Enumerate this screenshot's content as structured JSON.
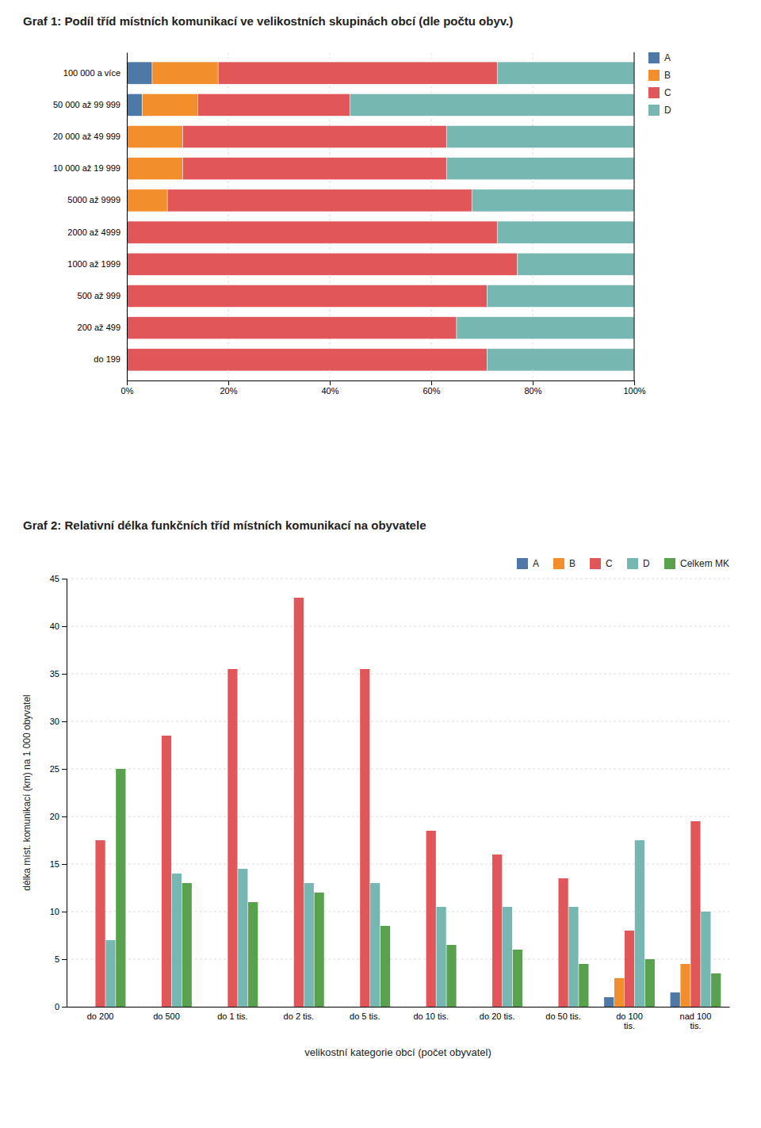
{
  "chart_data": [
    {
      "type": "bar",
      "orientation": "horizontal",
      "stacked": true,
      "title": "Graf 1: Podíl tříd místních komunikací ve velikostních skupinách obcí (dle počtu obyv.)",
      "categories": [
        "100 000 a více",
        "50 000 až 99 999",
        "20 000 až 49 999",
        "10 000 až 19 999",
        "5000 až 9999",
        "2000 až 4999",
        "1000 až 1999",
        "500 až 999",
        "200 až 499",
        "do 199"
      ],
      "series": [
        {
          "name": "A",
          "values": [
            0.05,
            0.03,
            0.0,
            0.0,
            0.0,
            0.0,
            0.0,
            0.0,
            0.0,
            0.0
          ]
        },
        {
          "name": "B",
          "values": [
            0.13,
            0.11,
            0.11,
            0.11,
            0.08,
            0.0,
            0.0,
            0.0,
            0.0,
            0.0
          ]
        },
        {
          "name": "C",
          "values": [
            0.55,
            0.3,
            0.52,
            0.52,
            0.6,
            0.73,
            0.77,
            0.71,
            0.65,
            0.71
          ]
        },
        {
          "name": "D",
          "values": [
            0.27,
            0.56,
            0.37,
            0.37,
            0.32,
            0.27,
            0.23,
            0.29,
            0.35,
            0.29
          ]
        }
      ],
      "xlim": [
        0,
        1.0
      ],
      "xticks": [
        {
          "value": 0,
          "label": "0%"
        },
        {
          "value": 0.2,
          "label": "20%"
        },
        {
          "value": 0.4,
          "label": "40%"
        },
        {
          "value": 0.6,
          "label": "60%"
        },
        {
          "value": 0.8,
          "label": "80%"
        },
        {
          "value": 1.0,
          "label": "100%"
        }
      ],
      "grid": true,
      "legend": "right"
    },
    {
      "type": "bar",
      "title": "Graf 2: Relativní délka funkčních tříd místních komunikací na obyvatele",
      "categories": [
        "do 200",
        "do 500",
        "do 1 tis.",
        "do 2 tis.",
        "do 5 tis.",
        "do 10 tis.",
        "do 20 tis.",
        "do 50 tis.",
        "do 100\ntis.",
        "nad 100\ntis."
      ],
      "xlabel": "velikostní kategorie obcí (počet obyvatel)",
      "ylabel": "délka míst. komunikací (km) na 1 000 obyvatel",
      "series": [
        {
          "name": "A",
          "values": [
            0.0,
            0.0,
            0.0,
            0.0,
            0.0,
            0.0,
            0.0,
            0.0,
            1.0,
            1.5
          ]
        },
        {
          "name": "B",
          "values": [
            0.0,
            0.0,
            0.0,
            0.0,
            0.0,
            0.0,
            0.0,
            0.0,
            3.0,
            4.5
          ]
        },
        {
          "name": "C",
          "values": [
            17.5,
            28.5,
            35.5,
            43.0,
            35.5,
            18.5,
            16.0,
            13.5,
            8.0,
            19.5
          ]
        },
        {
          "name": "D",
          "values": [
            7.0,
            14.0,
            14.5,
            13.0,
            13.0,
            10.5,
            10.5,
            10.5,
            17.5,
            10.0
          ]
        },
        {
          "name": "Celkem MK",
          "values": [
            25.0,
            13.0,
            11.0,
            12.0,
            8.5,
            6.5,
            6.0,
            4.5,
            5.0,
            3.5
          ]
        }
      ],
      "ylim": [
        0,
        45
      ],
      "yticks": [
        0,
        5,
        10,
        15,
        20,
        25,
        30,
        35,
        40,
        45
      ],
      "grid": true,
      "legend": "upper right"
    }
  ]
}
